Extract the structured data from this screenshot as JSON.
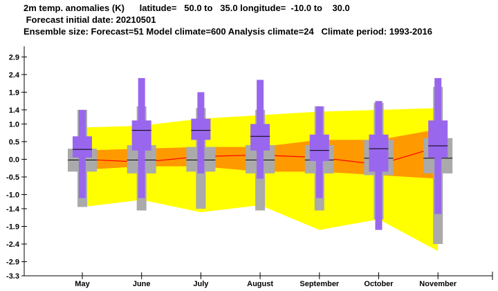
{
  "header": {
    "line1": "2m temp. anomalies (K)      latitude=   50.0 to   35.0 longitude=  -10.0 to    30.0",
    "line2": " Forecast initial date: 20210501",
    "line3": "Ensemble size: Forecast=51 Model climate=600 Analysis climate=24   Climate period: 1993-2016"
  },
  "colors": {
    "climate_outer": "#ffff00",
    "climate_inner": "#ff9900",
    "median_line": "#ff0000",
    "model_box": "#aaaaaa",
    "forecast_box": "#9966ee",
    "median_tick": "#000000"
  },
  "chart_data": {
    "type": "boxplot",
    "categories": [
      "May",
      "June",
      "July",
      "August",
      "September",
      "October",
      "November"
    ],
    "y_ticks": [
      2.9,
      2.4,
      1.9,
      1.4,
      1.0,
      0.5,
      0.0,
      -0.5,
      -1.0,
      -1.4,
      -1.9,
      -2.4,
      -2.9,
      -3.3
    ],
    "y_tick_labels": [
      "2.9",
      "2.4",
      "1.9",
      "1.4",
      "1.0",
      "0.5",
      "0.0",
      "-0.5",
      "-1.0",
      "-1.4",
      "-1.9",
      "-2.4",
      "-2.9",
      "-3.3"
    ],
    "ylim": [
      -3.3,
      3.2
    ],
    "grid": false,
    "climate_band_outer": {
      "upper": [
        0.9,
        0.95,
        1.15,
        1.25,
        1.35,
        1.4,
        1.45
      ],
      "lower": [
        -1.35,
        -1.15,
        -1.5,
        -1.3,
        -2.0,
        -1.7,
        -2.6
      ]
    },
    "climate_band_inner": {
      "upper": [
        0.25,
        0.3,
        0.35,
        0.35,
        0.55,
        0.55,
        0.85
      ],
      "lower": [
        -0.3,
        -0.2,
        -0.2,
        -0.35,
        -0.35,
        -0.45,
        -0.55
      ]
    },
    "climate_median": [
      0.0,
      -0.08,
      0.08,
      0.12,
      0.05,
      -0.15,
      0.35
    ],
    "model_climate": {
      "whisker_low": [
        -1.35,
        -1.45,
        -1.4,
        -1.45,
        -1.45,
        -1.7,
        -2.4
      ],
      "q1": [
        -0.35,
        -0.4,
        -0.35,
        -0.4,
        -0.4,
        -0.45,
        -0.4
      ],
      "median": [
        -0.02,
        -0.02,
        -0.02,
        -0.02,
        -0.02,
        0.03,
        0.03
      ],
      "q3": [
        0.3,
        0.4,
        0.35,
        0.4,
        0.4,
        0.55,
        0.6
      ],
      "whisker_high": [
        1.4,
        1.5,
        1.45,
        1.4,
        1.5,
        1.6,
        2.05
      ]
    },
    "forecast": {
      "whisker_low": [
        -1.1,
        -1.1,
        -0.4,
        -0.55,
        -1.1,
        -2.0,
        -1.55
      ],
      "q1": [
        0.05,
        0.25,
        0.55,
        0.25,
        -0.05,
        -0.35,
        0.05
      ],
      "median": [
        0.28,
        0.82,
        0.82,
        0.65,
        0.25,
        0.3,
        0.38
      ],
      "q3": [
        0.65,
        1.1,
        1.15,
        1.0,
        0.7,
        0.7,
        1.1
      ],
      "whisker_high": [
        1.4,
        2.3,
        1.9,
        2.25,
        1.5,
        1.65,
        2.3
      ]
    }
  }
}
